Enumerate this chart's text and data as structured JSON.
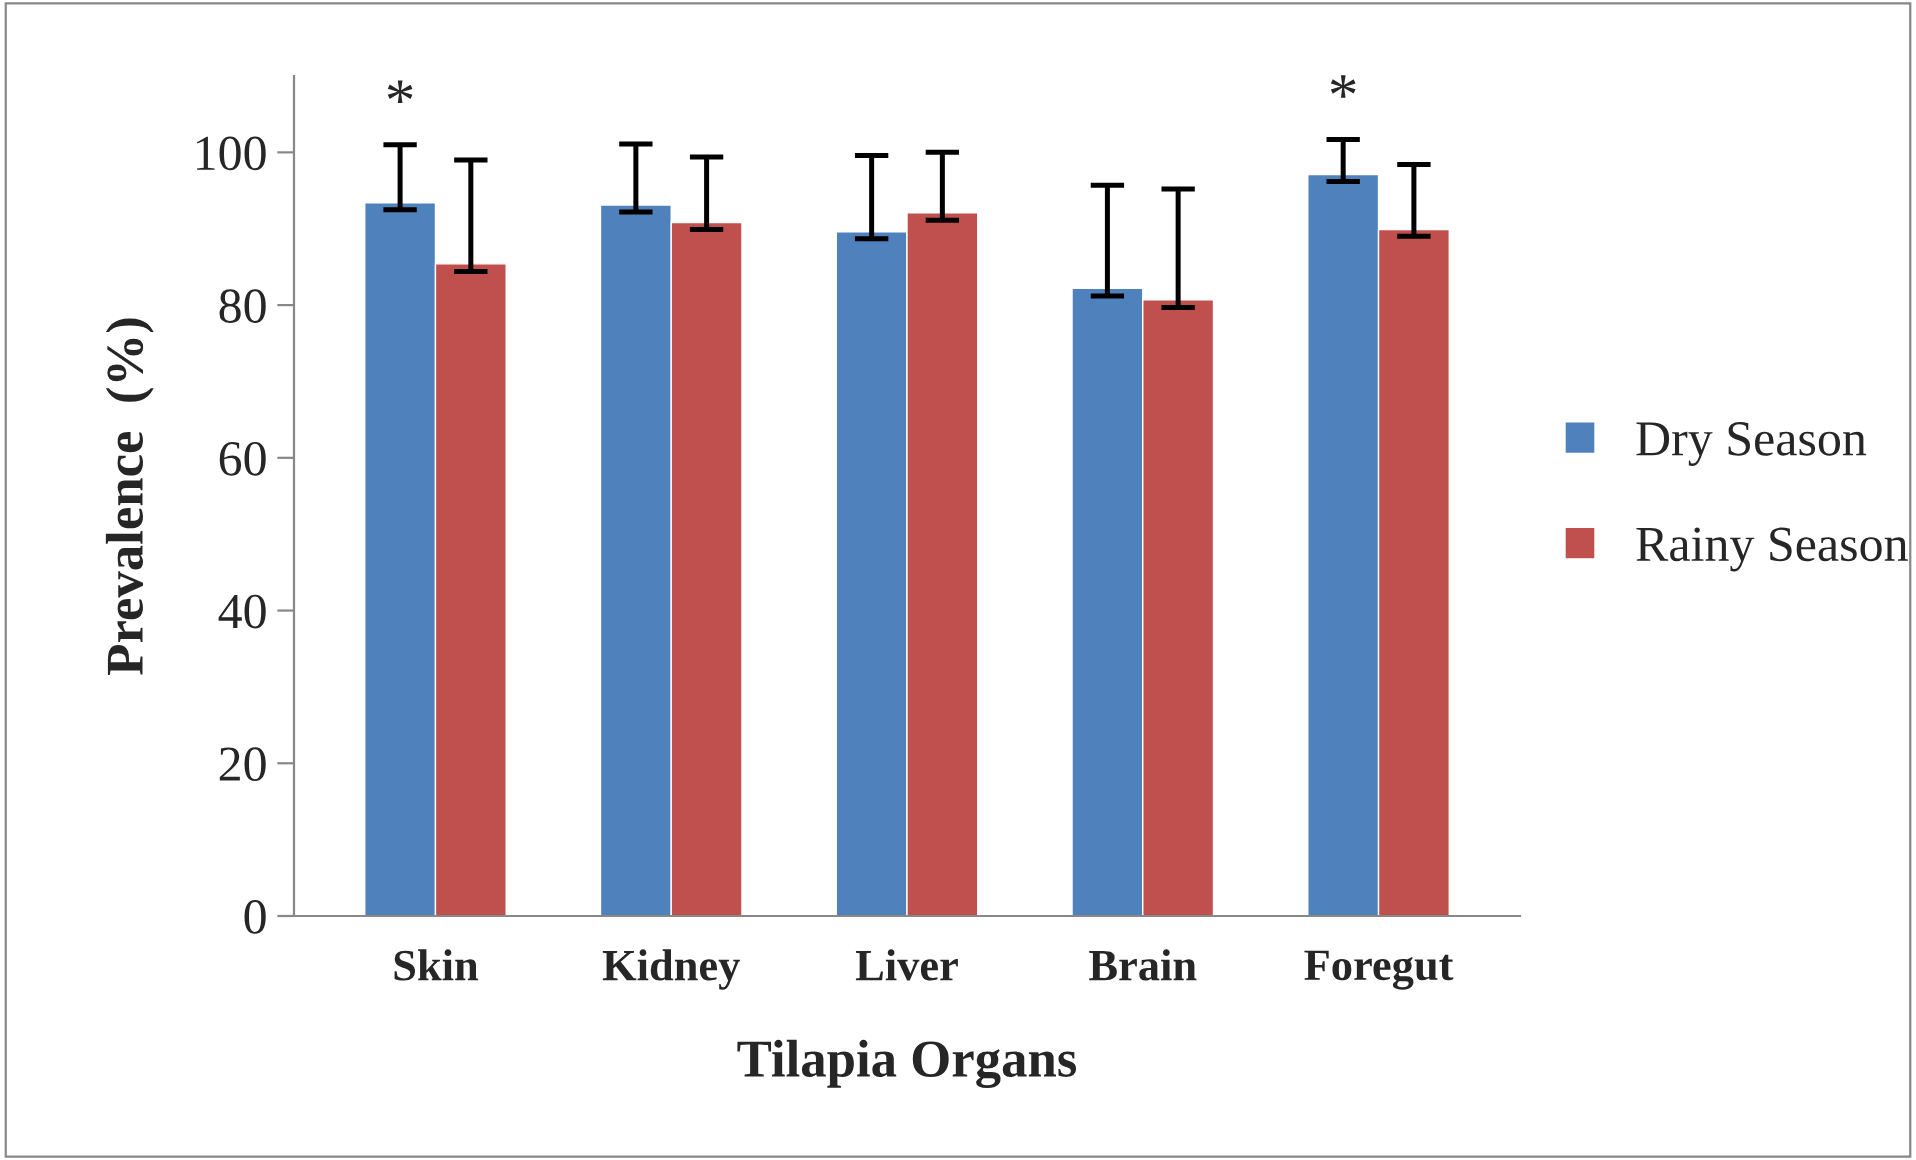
{
  "chart_data": {
    "type": "bar",
    "xlabel": "Tilapia Organs",
    "ylabel": "Prevalence  (%)",
    "categories": [
      "Skin",
      "Kidney",
      "Liver",
      "Brain",
      "Foregut"
    ],
    "series": [
      {
        "name": "Dry Season",
        "color": "#4f81bd",
        "values": [
          93.4,
          93.1,
          89.6,
          82.2,
          97.1
        ],
        "errors": [
          [
            92.5,
            101.0
          ],
          [
            92.2,
            101.1
          ],
          [
            88.7,
            99.6
          ],
          [
            81.2,
            95.7
          ],
          [
            96.2,
            101.7
          ]
        ]
      },
      {
        "name": "Rainy Season",
        "color": "#c0504d",
        "values": [
          85.4,
          90.8,
          92.1,
          80.7,
          89.9
        ],
        "errors": [
          [
            84.4,
            99.0
          ],
          [
            89.9,
            99.4
          ],
          [
            91.1,
            100.0
          ],
          [
            79.7,
            95.2
          ],
          [
            89.0,
            98.4
          ]
        ]
      }
    ],
    "ylim": [
      0,
      110
    ],
    "yticks": [
      0,
      20,
      40,
      60,
      80,
      100
    ],
    "grid": false,
    "legend": "right",
    "annotations": [
      "*",
      "*"
    ]
  }
}
